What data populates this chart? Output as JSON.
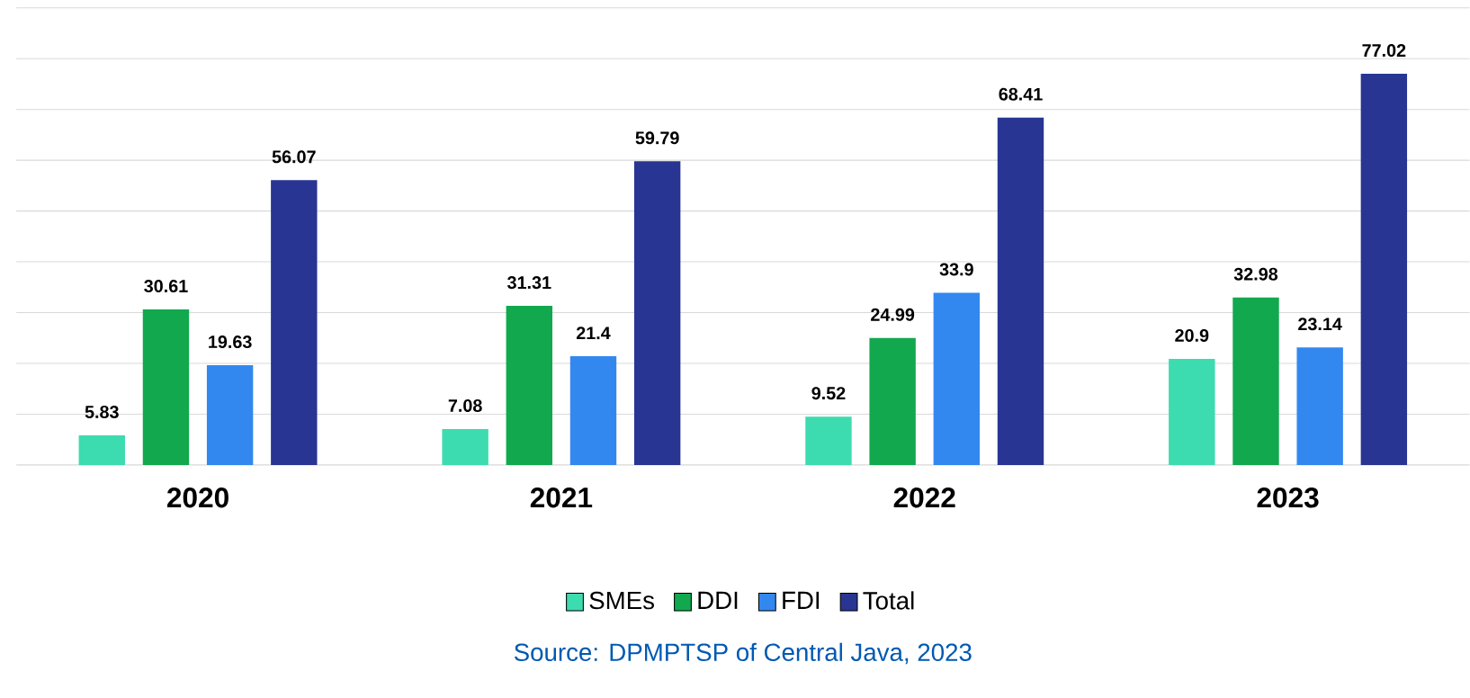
{
  "chart_data": {
    "type": "bar",
    "categories": [
      "2020",
      "2021",
      "2022",
      "2023"
    ],
    "series": [
      {
        "name": "SMEs",
        "color": "#3ddbb0",
        "values": [
          5.83,
          7.08,
          9.52,
          20.9
        ]
      },
      {
        "name": "DDI",
        "color": "#12a84e",
        "values": [
          30.61,
          31.31,
          24.99,
          32.98
        ]
      },
      {
        "name": "FDI",
        "color": "#3388f0",
        "values": [
          19.63,
          21.4,
          33.9,
          23.14
        ]
      },
      {
        "name": "Total",
        "color": "#283593",
        "values": [
          56.07,
          59.79,
          68.41,
          77.02
        ]
      }
    ],
    "ylim": [
      0,
      90
    ],
    "yticks": [
      {
        "value": 0,
        "label": null
      },
      {
        "value": 10,
        "label": null
      },
      {
        "value": 20,
        "label": null
      },
      {
        "value": 30,
        "label": null
      },
      {
        "value": 40,
        "label": null
      },
      {
        "value": 50,
        "label": null
      },
      {
        "value": 60,
        "label": null
      },
      {
        "value": 70,
        "label": null
      },
      {
        "value": 80,
        "label": null
      },
      {
        "value": 90,
        "label": null
      }
    ],
    "tick_labels": "x",
    "grid": "y",
    "legend": "bottom",
    "data_labels": true,
    "annotations": [
      "Source: DPMPTSP of Central Java, 2023"
    ]
  }
}
